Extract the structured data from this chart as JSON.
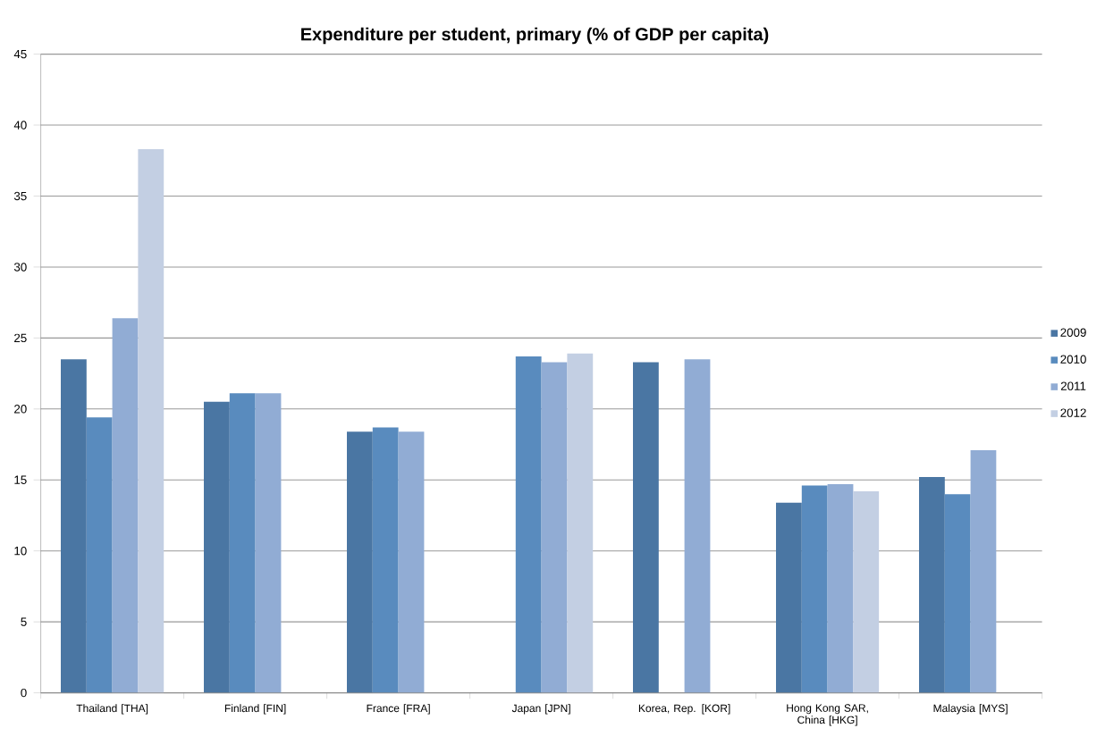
{
  "chart_data": {
    "type": "bar",
    "title": "**Expenditure per student, primary (% of GDP per capita)**",
    "categories": [
      "Thailand [THA]",
      "Finland [FIN]",
      "France [FRA]",
      "Japan [JPN]",
      "Korea, Rep. [KOR]",
      "Hong Kong SAR, China [HKG]",
      "Malaysia [MYS]"
    ],
    "series": [
      {
        "name": "2009",
        "color": "#4a76a3",
        "values": [
          23.5,
          20.5,
          18.4,
          null,
          23.3,
          13.4,
          15.2
        ]
      },
      {
        "name": "2010",
        "color": "#598bbe",
        "values": [
          19.4,
          21.1,
          18.7,
          23.7,
          null,
          14.6,
          14.0
        ]
      },
      {
        "name": "2011",
        "color": "#91acd4",
        "values": [
          26.4,
          21.1,
          18.4,
          23.3,
          23.5,
          14.7,
          17.1
        ]
      },
      {
        "name": "2012",
        "color": "#c3cfe3",
        "values": [
          38.3,
          null,
          null,
          23.9,
          null,
          14.2,
          null
        ]
      }
    ],
    "ylim": [
      0,
      45
    ],
    "yticks": [
      0,
      5,
      10,
      15,
      20,
      25,
      30,
      35,
      40,
      45
    ],
    "grid": "y",
    "legend": "right"
  }
}
